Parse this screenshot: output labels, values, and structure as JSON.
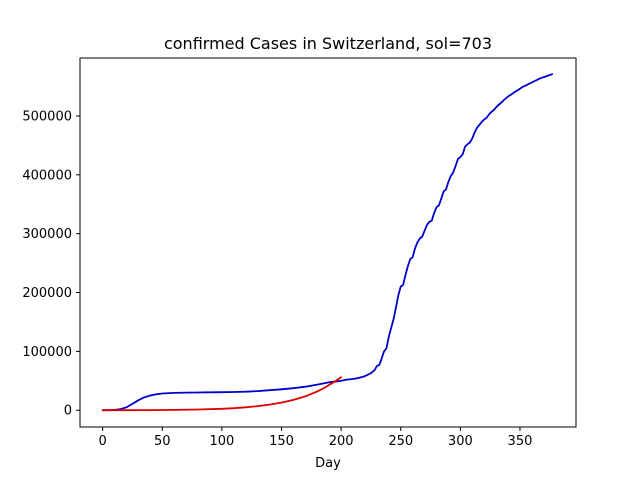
{
  "chart_data": {
    "type": "line",
    "title": "confirmed Cases in Switzerland, sol=703",
    "xlabel": "Day",
    "ylabel": "",
    "xlim": [
      -19,
      397
    ],
    "ylim": [
      -28500,
      598500
    ],
    "xticks": [
      0,
      50,
      100,
      150,
      200,
      250,
      300,
      350
    ],
    "yticks": [
      0,
      100000,
      200000,
      300000,
      400000,
      500000
    ],
    "grid": false,
    "series": [
      {
        "color": "#0000cc",
        "x": [
          0,
          5,
          10,
          15,
          20,
          25,
          30,
          35,
          40,
          45,
          50,
          60,
          70,
          80,
          90,
          100,
          110,
          120,
          130,
          140,
          150,
          160,
          170,
          180,
          190,
          200,
          205,
          210,
          215,
          220,
          225,
          228,
          230,
          232,
          234,
          236,
          238,
          240,
          242,
          244,
          246,
          248,
          250,
          252,
          254,
          256,
          258,
          260,
          262,
          264,
          266,
          268,
          270,
          272,
          274,
          276,
          278,
          280,
          282,
          284,
          286,
          288,
          290,
          292,
          294,
          296,
          298,
          300,
          302,
          304,
          306,
          308,
          310,
          312,
          314,
          316,
          318,
          320,
          322,
          325,
          328,
          331,
          334,
          337,
          340,
          343,
          346,
          349,
          352,
          355,
          358,
          361,
          364,
          367,
          370,
          373,
          377
        ],
        "y": [
          0,
          100,
          500,
          2000,
          5000,
          11000,
          17000,
          22000,
          25000,
          27000,
          28500,
          29500,
          30000,
          30200,
          30500,
          30700,
          31000,
          31500,
          32500,
          34000,
          35500,
          37500,
          40000,
          43500,
          47500,
          50000,
          52000,
          53000,
          55000,
          58000,
          63000,
          68000,
          75000,
          77000,
          88000,
          100000,
          105000,
          125000,
          140000,
          155000,
          175000,
          195000,
          210000,
          213000,
          230000,
          245000,
          257000,
          260000,
          275000,
          285000,
          292000,
          295000,
          305000,
          315000,
          320000,
          322000,
          335000,
          345000,
          348000,
          360000,
          372000,
          375000,
          388000,
          398000,
          404000,
          415000,
          427000,
          430000,
          435000,
          448000,
          452000,
          455000,
          462000,
          472000,
          480000,
          485000,
          490000,
          494000,
          497000,
          505000,
          510000,
          517000,
          522000,
          528000,
          533000,
          537000,
          541000,
          545000,
          549000,
          552000,
          555000,
          558000,
          561000,
          564000,
          566000,
          568000,
          571000
        ]
      },
      {
        "color": "#dd0000",
        "x": [
          0,
          20,
          40,
          60,
          80,
          100,
          110,
          120,
          130,
          140,
          150,
          160,
          170,
          180,
          185,
          190,
          195,
          200
        ],
        "y": [
          0,
          100,
          250,
          600,
          1200,
          2500,
          3500,
          5000,
          7000,
          9500,
          13000,
          17500,
          23500,
          32000,
          37000,
          43000,
          49000,
          56000
        ]
      }
    ]
  }
}
